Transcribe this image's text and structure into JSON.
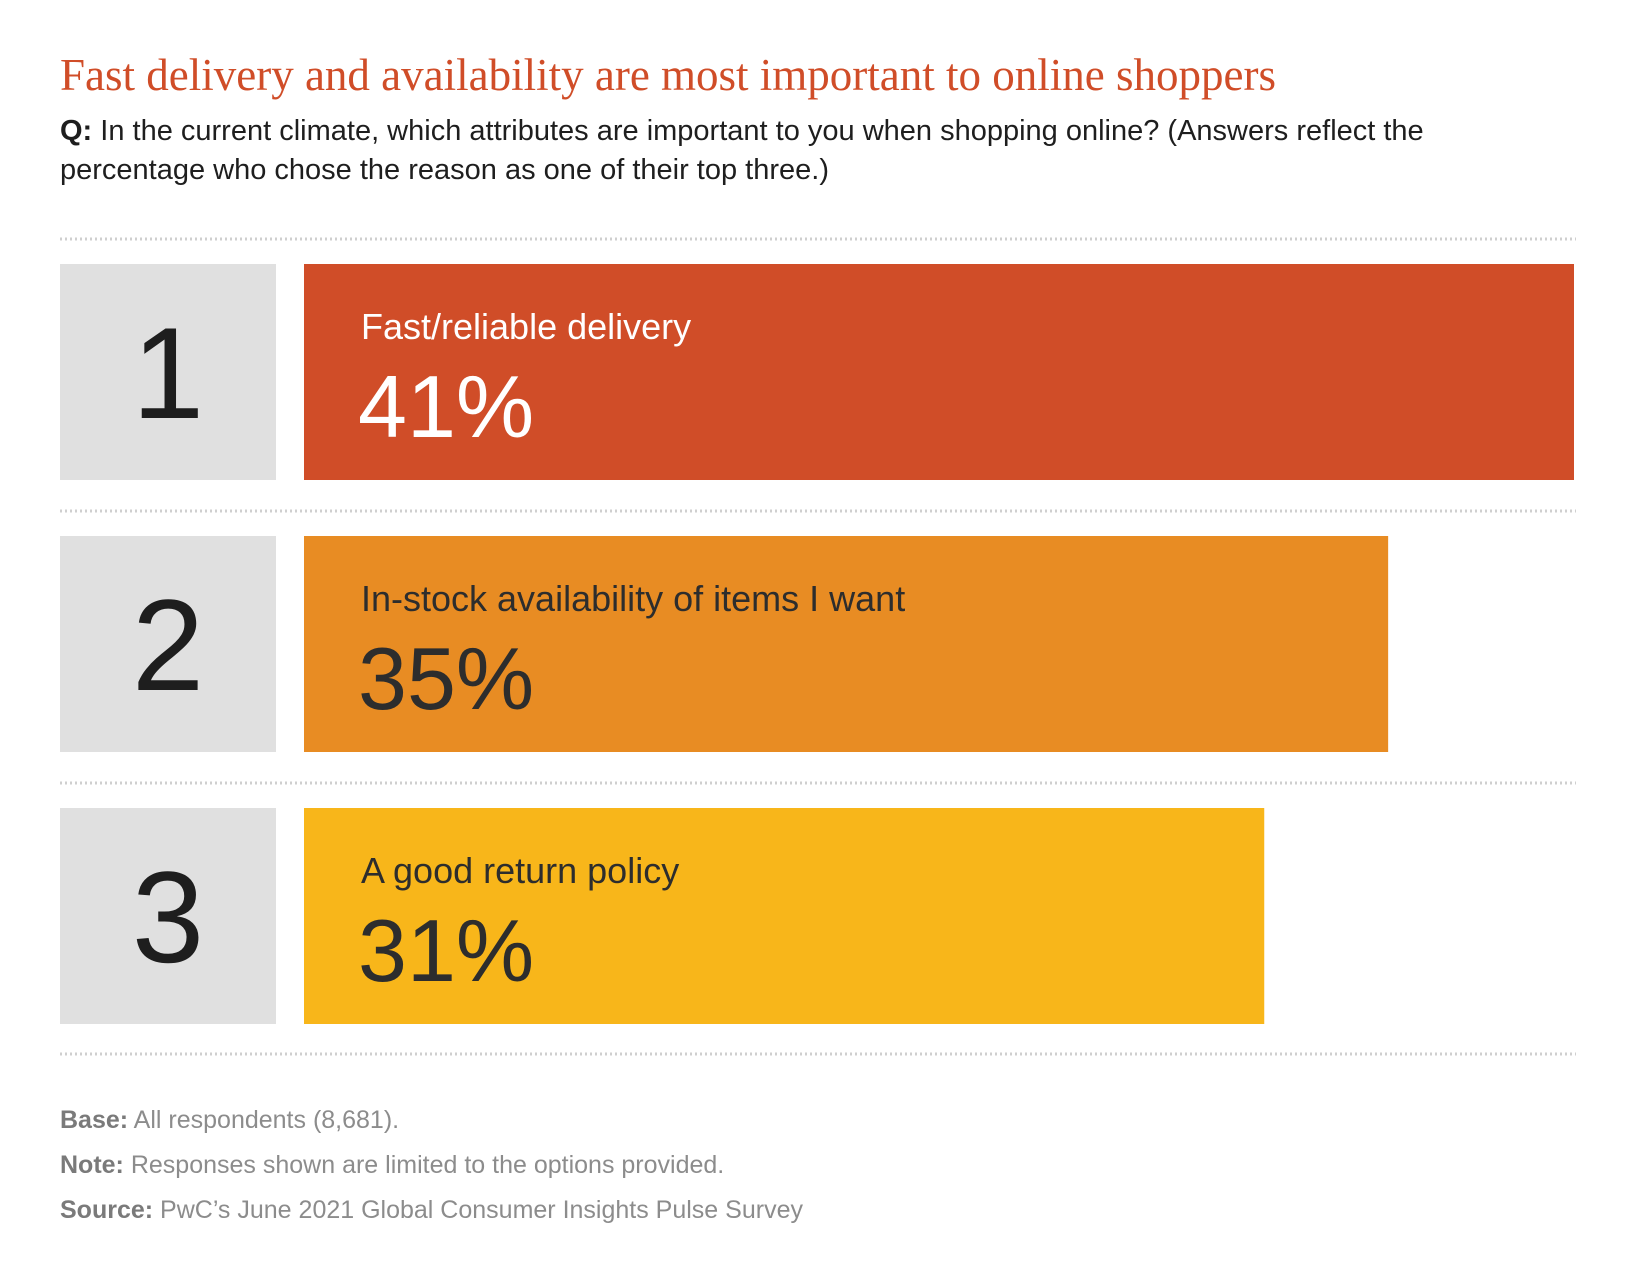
{
  "chart_data": {
    "type": "bar",
    "title": "Fast delivery and availability are most important to online shoppers",
    "subtitle": {
      "label": "Q:",
      "text": "In the current climate, which attributes are important to you when shopping online? (Answers reflect the percentage who chose the reason as one of their top three.)"
    },
    "ranks": [
      1,
      2,
      3
    ],
    "categories": [
      "Fast/reliable delivery",
      "In-stock availability of items I want",
      "A good return policy"
    ],
    "values": [
      41,
      35,
      31
    ],
    "value_labels": [
      "41%",
      "35%",
      "31%"
    ],
    "colors": [
      "#d04d28",
      "#e88c23",
      "#f8b61a"
    ],
    "label_colors": [
      "#ffffff",
      "#2d2d2d",
      "#2d2d2d"
    ],
    "notes": [
      {
        "label": "Base:",
        "text": "All respondents (8,681)."
      },
      {
        "label": "Note:",
        "text": "Responses shown are limited to the options provided."
      },
      {
        "label": "Source:",
        "text": "PwC’s June 2021 Global Consumer Insights Pulse Survey"
      }
    ]
  }
}
